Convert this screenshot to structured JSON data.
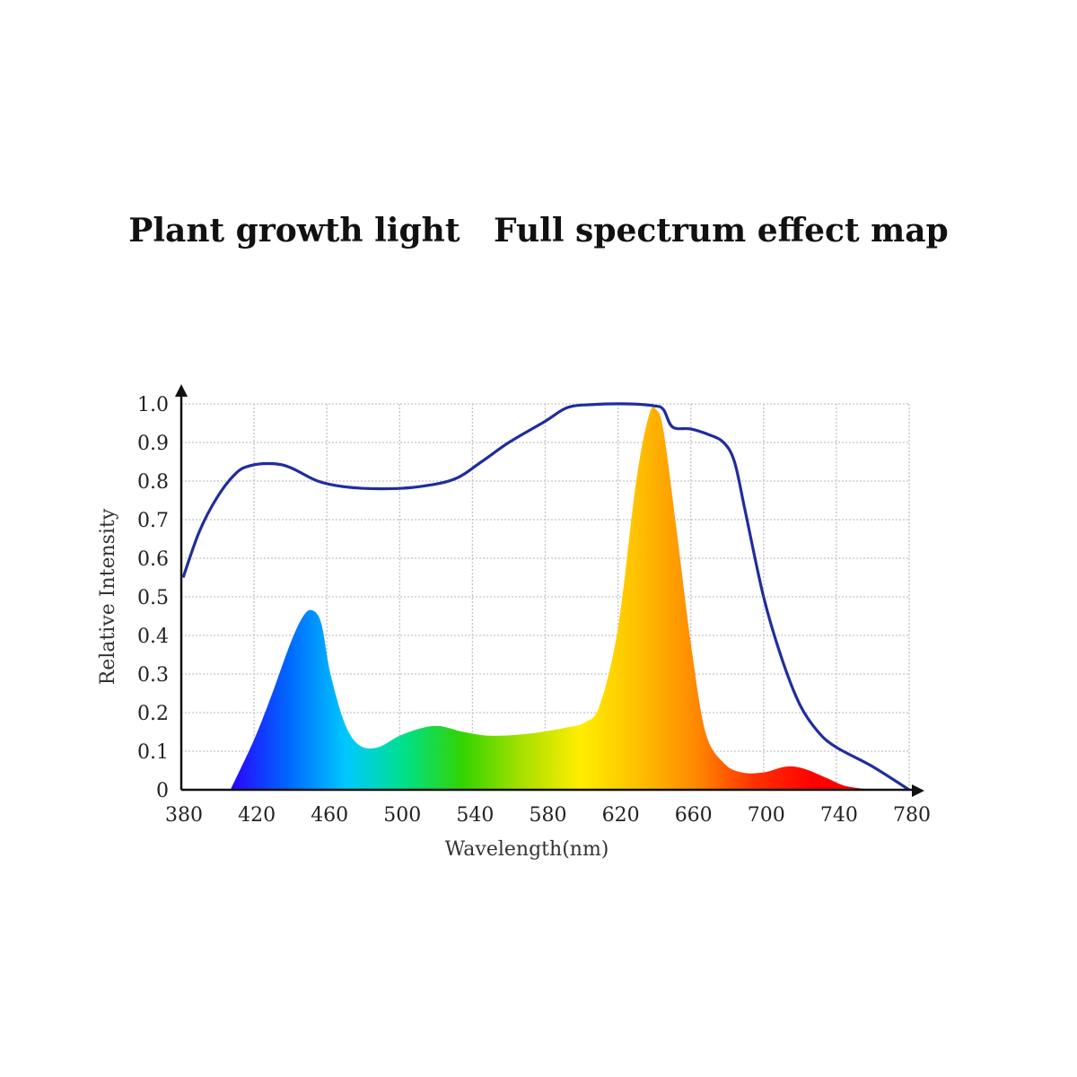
{
  "chart_data": {
    "type": "area",
    "title": "Plant growth light   Full spectrum effect map",
    "xlabel": "Wavelength(nm)",
    "ylabel": "Relative Intensity",
    "xlim": [
      380,
      780
    ],
    "ylim": [
      0,
      1.0
    ],
    "xticks": [
      "380",
      "420",
      "460",
      "500",
      "540",
      "580",
      "620",
      "660",
      "700",
      "740",
      "780"
    ],
    "yticks": [
      "0",
      "0.1",
      "0.2",
      "0.3",
      "0.4",
      "0.5",
      "0.6",
      "0.7",
      "0.8",
      "0.9",
      "1.0"
    ],
    "grid": true,
    "series": [
      {
        "kind": "line",
        "color": "#1f2d9e",
        "points": [
          [
            381,
            0.55
          ],
          [
            390,
            0.67
          ],
          [
            400,
            0.76
          ],
          [
            410,
            0.82
          ],
          [
            418,
            0.84
          ],
          [
            430,
            0.845
          ],
          [
            440,
            0.835
          ],
          [
            455,
            0.8
          ],
          [
            470,
            0.785
          ],
          [
            490,
            0.78
          ],
          [
            510,
            0.785
          ],
          [
            530,
            0.805
          ],
          [
            545,
            0.85
          ],
          [
            560,
            0.9
          ],
          [
            580,
            0.955
          ],
          [
            592,
            0.99
          ],
          [
            605,
            0.998
          ],
          [
            625,
            1.0
          ],
          [
            640,
            0.995
          ],
          [
            645,
            0.985
          ],
          [
            650,
            0.94
          ],
          [
            660,
            0.935
          ],
          [
            670,
            0.92
          ],
          [
            678,
            0.9
          ],
          [
            684,
            0.85
          ],
          [
            690,
            0.72
          ],
          [
            700,
            0.5
          ],
          [
            710,
            0.34
          ],
          [
            720,
            0.22
          ],
          [
            730,
            0.15
          ],
          [
            740,
            0.11
          ],
          [
            760,
            0.06
          ],
          [
            780,
            0.0
          ]
        ]
      },
      {
        "kind": "area",
        "colors": [
          "#2a00ff",
          "#0066ff",
          "#00c8ff",
          "#00e08a",
          "#33d400",
          "#a6e000",
          "#ffee00",
          "#ffc000",
          "#ff8800",
          "#ff3000",
          "#ff0000",
          "#ff0000"
        ],
        "points": [
          [
            407,
            0.0
          ],
          [
            420,
            0.13
          ],
          [
            430,
            0.25
          ],
          [
            440,
            0.38
          ],
          [
            447,
            0.45
          ],
          [
            452,
            0.465
          ],
          [
            457,
            0.43
          ],
          [
            462,
            0.3
          ],
          [
            470,
            0.17
          ],
          [
            478,
            0.115
          ],
          [
            488,
            0.11
          ],
          [
            500,
            0.14
          ],
          [
            512,
            0.16
          ],
          [
            522,
            0.165
          ],
          [
            535,
            0.15
          ],
          [
            550,
            0.14
          ],
          [
            570,
            0.145
          ],
          [
            590,
            0.16
          ],
          [
            602,
            0.175
          ],
          [
            610,
            0.22
          ],
          [
            620,
            0.42
          ],
          [
            630,
            0.8
          ],
          [
            637,
            0.97
          ],
          [
            641,
            0.985
          ],
          [
            645,
            0.93
          ],
          [
            652,
            0.68
          ],
          [
            660,
            0.38
          ],
          [
            668,
            0.15
          ],
          [
            678,
            0.07
          ],
          [
            688,
            0.045
          ],
          [
            700,
            0.045
          ],
          [
            712,
            0.06
          ],
          [
            722,
            0.055
          ],
          [
            735,
            0.03
          ],
          [
            745,
            0.01
          ],
          [
            760,
            0.0
          ]
        ]
      }
    ]
  }
}
